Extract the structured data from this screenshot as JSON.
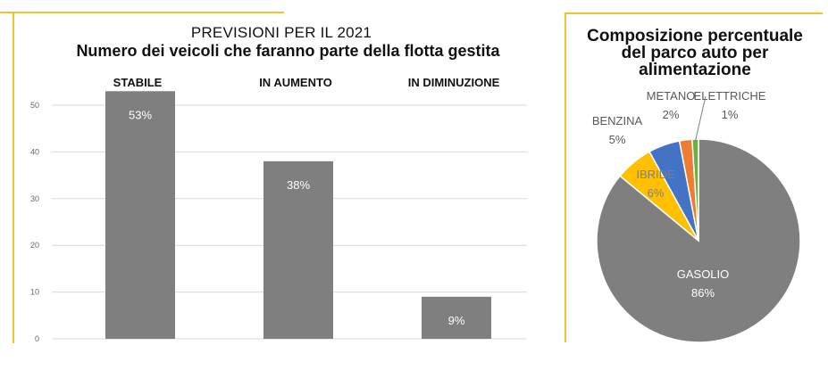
{
  "chart_data": [
    {
      "type": "bar",
      "title": "PREVISIONI PER IL 2021",
      "subtitle": "Numero dei veicoli che faranno parte della flotta gestita",
      "categories": [
        "STABILE",
        "IN AUMENTO",
        "IN DIMINUZIONE"
      ],
      "values": [
        53,
        38,
        9
      ],
      "data_labels": [
        "53%",
        "38%",
        "9%"
      ],
      "ylim": [
        0,
        55
      ],
      "yticks": [
        0,
        10,
        20,
        30,
        40,
        50
      ],
      "ytick_labels": [
        "0",
        "10",
        "20",
        "30",
        "40",
        "50"
      ],
      "grid": true,
      "bar_color": "#7f7f7f"
    },
    {
      "type": "pie",
      "title": "Composizione percentuale del parco auto per alimentazione",
      "categories": [
        "GASOLIO",
        "IBRIDE",
        "BENZINA",
        "METANO",
        "ELETTRICHE"
      ],
      "values": [
        86,
        6,
        5,
        2,
        1
      ],
      "data_labels": [
        "86%",
        "6%",
        "5%",
        "2%",
        "1%"
      ],
      "colors": [
        "#7f7f7f",
        "#ffc000",
        "#4472c4",
        "#ed7d31",
        "#70ad47"
      ]
    }
  ],
  "accent_color": "#f2c230"
}
